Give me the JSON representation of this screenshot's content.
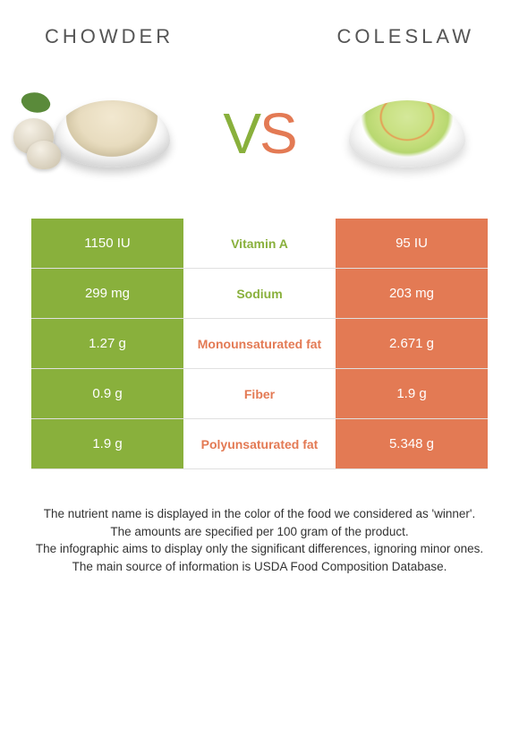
{
  "colors": {
    "left": "#89b03c",
    "right": "#e37a54",
    "row_border": "#e0e0e0"
  },
  "header": {
    "left_title": "CHOWDER",
    "right_title": "COLESLAW"
  },
  "vs": {
    "v": "V",
    "s": "S"
  },
  "rows": [
    {
      "left": "1150 IU",
      "label": "Vitamin A",
      "right": "95 IU",
      "winner": "left"
    },
    {
      "left": "299 mg",
      "label": "Sodium",
      "right": "203 mg",
      "winner": "left"
    },
    {
      "left": "1.27 g",
      "label": "Monounsaturated fat",
      "right": "2.671 g",
      "winner": "right"
    },
    {
      "left": "0.9 g",
      "label": "Fiber",
      "right": "1.9 g",
      "winner": "right"
    },
    {
      "left": "1.9 g",
      "label": "Polyunsaturated fat",
      "right": "5.348 g",
      "winner": "right"
    }
  ],
  "footnotes": [
    "The nutrient name is displayed in the color of the food we considered as 'winner'.",
    "The amounts are specified per 100 gram of the product.",
    "The infographic aims to display only the significant differences, ignoring minor ones.",
    "The main source of information is USDA Food Composition Database."
  ]
}
